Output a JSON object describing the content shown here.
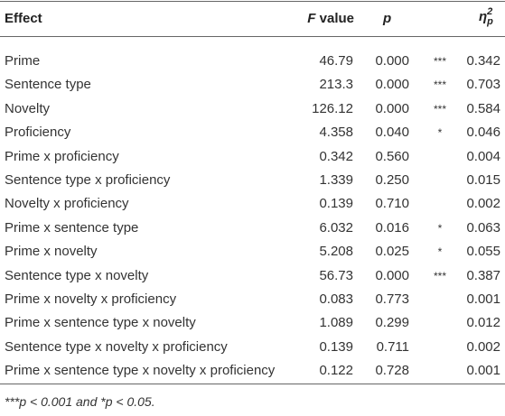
{
  "table": {
    "header": {
      "effect": "Effect",
      "f_value": {
        "symbol": "F",
        "text": "value"
      },
      "p": "p",
      "eta": {
        "symbol": "η",
        "sup": "2",
        "sub": "p"
      }
    },
    "rows": [
      [
        "Prime",
        "46.79",
        "0.000",
        "***",
        "0.342"
      ],
      [
        "Sentence type",
        "213.3",
        "0.000",
        "***",
        "0.703"
      ],
      [
        "Novelty",
        "126.12",
        "0.000",
        "***",
        "0.584"
      ],
      [
        "Proficiency",
        "4.358",
        "0.040",
        "*",
        "0.046"
      ],
      [
        "Prime x proficiency",
        "0.342",
        "0.560",
        null,
        "0.004"
      ],
      [
        "Sentence type x proficiency",
        "1.339",
        "0.250",
        null,
        "0.015"
      ],
      [
        "Novelty x proficiency",
        "0.139",
        "0.710",
        null,
        "0.002"
      ],
      [
        "Prime x sentence type",
        "6.032",
        "0.016",
        "*",
        "0.063"
      ],
      [
        "Prime x novelty",
        "5.208",
        "0.025",
        "*",
        "0.055"
      ],
      [
        "Sentence type x novelty",
        "56.73",
        "0.000",
        "***",
        "0.387"
      ],
      [
        "Prime x novelty x proficiency",
        "0.083",
        "0.773",
        null,
        "0.001"
      ],
      [
        "Prime x sentence type x novelty",
        "1.089",
        "0.299",
        null,
        "0.012"
      ],
      [
        "Sentence type x novelty x proficiency",
        "0.139",
        "0.711",
        null,
        "0.002"
      ],
      [
        "Prime x sentence type x novelty x proficiency",
        "0.122",
        "0.728",
        null,
        "0.001"
      ]
    ],
    "footnote": "***p < 0.001 and *p < 0.05."
  }
}
